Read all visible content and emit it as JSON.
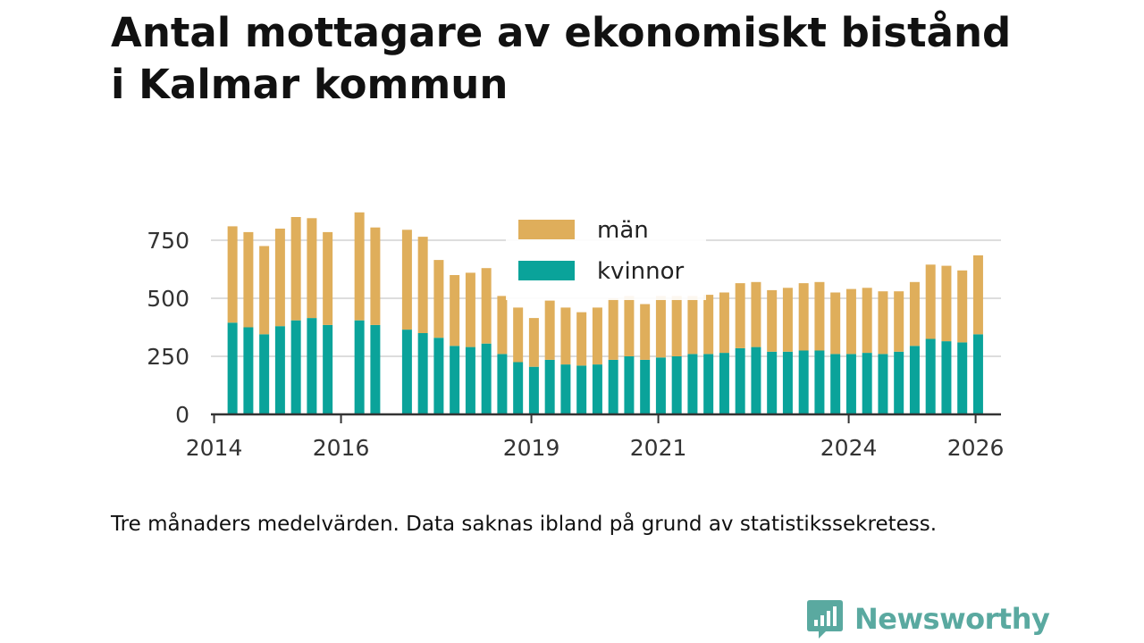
{
  "title_lines": [
    "Antal mottagare av ekonomiskt bistånd",
    "i Kalmar kommun"
  ],
  "caption": "Tre månaders medelvärden. Data saknas ibland på grund av statistikssekretess.",
  "brand": {
    "name": "Newsworthy",
    "icon": "bar-chart-speech-bubble-icon",
    "color": "#5aa9a0"
  },
  "colors": {
    "man": "#dfae5b",
    "kvinnor": "#0aa39a",
    "grid": "#dddddd",
    "axis": "#333333",
    "text": "#333333"
  },
  "chart_data": {
    "type": "bar",
    "stacked": true,
    "title": "Antal mottagare av ekonomiskt bistånd i Kalmar kommun",
    "xlabel": "",
    "ylabel": "",
    "ylim": [
      0,
      900
    ],
    "yticks": [
      0,
      250,
      500,
      750
    ],
    "ytick_labels": [
      "0",
      "250",
      "500",
      "750"
    ],
    "xlim": [
      2013.95,
      2026.4
    ],
    "xticks": [
      2014,
      2016,
      2019,
      2021,
      2024,
      2026
    ],
    "xtick_labels": [
      "2014",
      "2016",
      "2019",
      "2021",
      "2024",
      "2026"
    ],
    "grid": true,
    "legend": {
      "position": "top-center",
      "entries": [
        "män",
        "kvinnor"
      ]
    },
    "x": [
      2014.29,
      2014.54,
      2014.79,
      2015.04,
      2015.29,
      2015.54,
      2015.79,
      2016.29,
      2016.54,
      2017.04,
      2017.29,
      2017.54,
      2017.79,
      2018.04,
      2018.29,
      2018.54,
      2018.79,
      2019.04,
      2019.29,
      2019.54,
      2019.79,
      2020.04,
      2020.29,
      2020.54,
      2020.79,
      2021.04,
      2021.29,
      2021.54,
      2021.79,
      2022.04,
      2022.29,
      2022.54,
      2022.79,
      2023.04,
      2023.29,
      2023.54,
      2023.79,
      2024.04,
      2024.29,
      2024.54,
      2024.79,
      2025.04,
      2025.29,
      2025.54,
      2025.79,
      2026.04
    ],
    "series": [
      {
        "name": "kvinnor",
        "values": [
          395,
          375,
          345,
          380,
          405,
          415,
          385,
          405,
          385,
          365,
          350,
          330,
          295,
          290,
          305,
          260,
          225,
          205,
          235,
          215,
          210,
          215,
          235,
          250,
          235,
          245,
          250,
          260,
          260,
          265,
          285,
          290,
          270,
          270,
          275,
          275,
          260,
          260,
          265,
          260,
          270,
          295,
          325,
          315,
          310,
          345
        ]
      },
      {
        "name": "män",
        "values": [
          415,
          410,
          380,
          420,
          445,
          430,
          400,
          465,
          420,
          430,
          415,
          335,
          305,
          320,
          325,
          250,
          235,
          210,
          255,
          245,
          230,
          245,
          265,
          260,
          240,
          265,
          260,
          250,
          255,
          260,
          280,
          280,
          265,
          275,
          290,
          295,
          265,
          280,
          280,
          270,
          260,
          275,
          320,
          325,
          310,
          340
        ]
      }
    ]
  }
}
